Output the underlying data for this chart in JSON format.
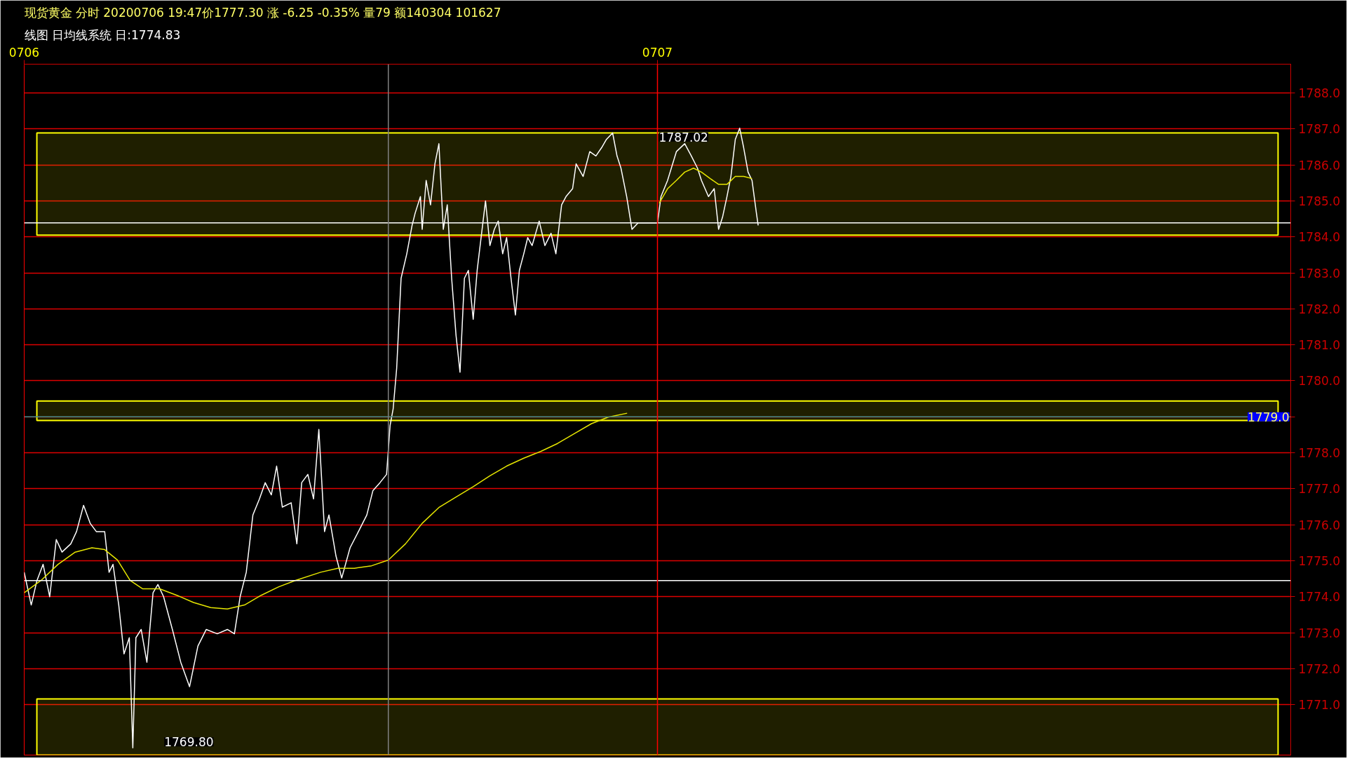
{
  "chart_data": {
    "type": "line",
    "title": "现货黄金 分时 20200706 19:47价1777.30 涨 -6.25 -0.35% 量79 额140304 101627",
    "subtitle": "线图 日均线系统 日:1774.83",
    "series": [
      {
        "color": "#ffffff",
        "x": [
          "2020-07-06T00:00",
          "2020-07-06T00:16",
          "2020-07-06T00:29",
          "2020-07-06T00:43",
          "2020-07-06T00:58",
          "2020-07-06T01:13",
          "2020-07-06T01:26",
          "2020-07-06T01:46",
          "2020-07-06T01:59",
          "2020-07-06T02:15",
          "2020-07-06T02:30",
          "2020-07-06T02:44",
          "2020-07-06T03:03",
          "2020-07-06T03:13",
          "2020-07-06T03:22",
          "2020-07-06T03:35",
          "2020-07-06T03:47",
          "2020-07-06T03:59",
          "2020-07-06T04:07",
          "2020-07-06T04:14",
          "2020-07-06T04:26",
          "2020-07-06T04:39",
          "2020-07-06T04:53",
          "2020-07-06T05:04",
          "2020-07-06T05:17",
          "2020-07-06T05:37",
          "2020-07-06T05:56",
          "2020-07-06T06:16",
          "2020-07-06T06:35",
          "2020-07-06T06:54",
          "2020-07-06T07:19",
          "2020-07-06T07:42",
          "2020-07-06T07:58",
          "2020-07-06T08:11",
          "2020-07-06T08:25",
          "2020-07-06T08:40",
          "2020-07-06T08:55",
          "2020-07-06T09:08",
          "2020-07-06T09:22",
          "2020-07-06T09:34",
          "2020-07-06T09:47",
          "2020-07-06T10:07",
          "2020-07-06T10:20",
          "2020-07-06T10:31",
          "2020-07-06T10:45",
          "2020-07-06T10:58",
          "2020-07-06T11:10",
          "2020-07-06T11:23",
          "2020-07-06T11:33",
          "2020-07-06T11:49",
          "2020-07-06T12:02",
          "2020-07-06T12:21",
          "2020-07-06T12:40",
          "2020-07-06T12:59",
          "2020-07-06T13:13",
          "2020-07-06T13:29",
          "2020-07-06T13:44",
          "2020-07-06T13:52",
          "2020-07-06T13:59",
          "2020-07-06T14:07",
          "2020-07-06T14:17",
          "2020-07-06T14:30",
          "2020-07-06T14:42",
          "2020-07-06T14:49",
          "2020-07-06T15:01",
          "2020-07-06T15:05",
          "2020-07-06T15:14",
          "2020-07-06T15:24",
          "2020-07-06T15:34",
          "2020-07-06T15:43",
          "2020-07-06T15:53",
          "2020-07-06T16:02",
          "2020-07-06T16:12",
          "2020-07-06T16:22",
          "2020-07-06T16:31",
          "2020-07-06T16:41",
          "2020-07-06T16:50",
          "2020-07-06T17:01",
          "2020-07-06T17:10",
          "2020-07-06T17:29",
          "2020-07-06T17:39",
          "2020-07-06T17:49",
          "2020-07-06T17:58",
          "2020-07-06T18:08",
          "2020-07-06T18:17",
          "2020-07-06T18:27",
          "2020-07-06T18:37",
          "2020-07-06T18:46",
          "2020-07-06T18:56",
          "2020-07-06T19:05",
          "2020-07-06T19:15",
          "2020-07-06T19:31",
          "2020-07-06T19:44",
          "2020-07-06T19:58",
          "2020-07-06T20:09",
          "2020-07-06T20:22",
          "2020-07-06T20:32",
          "2020-07-06T20:47",
          "2020-07-06T20:55",
          "2020-07-06T21:11",
          "2020-07-06T21:26",
          "2020-07-06T21:40",
          "2020-07-06T21:53",
          "2020-07-06T22:04",
          "2020-07-06T22:18",
          "2020-07-06T22:28",
          "2020-07-06T22:37",
          "2020-07-06T22:50",
          "2020-07-06T23:02",
          "2020-07-06T23:16",
          "2020-07-07T00:00",
          "2020-07-07T00:08",
          "2020-07-07T00:23",
          "2020-07-07T00:43",
          "2020-07-07T01:02",
          "2020-07-07T01:17",
          "2020-07-07T01:31",
          "2020-07-07T01:40",
          "2020-07-07T01:56",
          "2020-07-07T02:09",
          "2020-07-07T02:19",
          "2020-07-07T02:28",
          "2020-07-07T02:38",
          "2020-07-07T02:47",
          "2020-07-07T02:57",
          "2020-07-07T03:07",
          "2020-07-07T03:16",
          "2020-07-07T03:26",
          "2020-07-07T03:35",
          "2020-07-07T03:45",
          "2020-07-07T03:49"
        ],
        "values": [
          1774.68,
          1773.77,
          1774.45,
          1774.9,
          1774.0,
          1775.59,
          1775.24,
          1775.47,
          1775.81,
          1776.54,
          1776.04,
          1775.81,
          1775.81,
          1774.68,
          1774.9,
          1773.77,
          1772.41,
          1772.86,
          1769.8,
          1772.86,
          1773.09,
          1772.18,
          1774.11,
          1774.34,
          1774.0,
          1773.09,
          1772.18,
          1771.5,
          1772.63,
          1773.09,
          1772.97,
          1773.09,
          1772.97,
          1774.0,
          1774.68,
          1776.27,
          1776.72,
          1777.17,
          1776.83,
          1777.63,
          1776.49,
          1776.61,
          1775.47,
          1777.17,
          1777.4,
          1776.72,
          1778.65,
          1775.81,
          1776.27,
          1775.13,
          1774.52,
          1775.36,
          1775.81,
          1776.27,
          1776.95,
          1777.17,
          1777.4,
          1778.76,
          1779.22,
          1780.35,
          1782.85,
          1783.53,
          1784.32,
          1784.66,
          1785.12,
          1784.21,
          1785.57,
          1784.89,
          1786.03,
          1786.59,
          1784.21,
          1784.89,
          1782.85,
          1781.26,
          1780.24,
          1782.85,
          1783.07,
          1781.71,
          1783.07,
          1785.0,
          1783.76,
          1784.21,
          1784.44,
          1783.53,
          1783.98,
          1782.85,
          1781.83,
          1783.07,
          1783.53,
          1783.98,
          1783.76,
          1784.44,
          1783.76,
          1784.1,
          1783.53,
          1784.89,
          1785.12,
          1785.34,
          1786.03,
          1785.68,
          1786.37,
          1786.25,
          1786.48,
          1786.71,
          1786.89,
          1786.25,
          1785.91,
          1785.12,
          1784.21,
          1784.39,
          1784.39,
          1785.12,
          1785.57,
          1786.37,
          1786.59,
          1786.25,
          1785.91,
          1785.57,
          1785.12,
          1785.34,
          1784.21,
          1784.55,
          1785.12,
          1785.68,
          1786.71,
          1787.02,
          1786.48,
          1785.8,
          1785.57,
          1784.66,
          1784.32
        ]
      },
      {
        "color": "#e6e600",
        "x": [
          "2020-07-06T00:00",
          "2020-07-06T00:38",
          "2020-07-06T01:17",
          "2020-07-06T01:56",
          "2020-07-06T02:34",
          "2020-07-06T03:03",
          "2020-07-06T03:32",
          "2020-07-06T04:01",
          "2020-07-06T04:29",
          "2020-07-06T05:08",
          "2020-07-06T05:47",
          "2020-07-06T06:25",
          "2020-07-06T07:04",
          "2020-07-06T07:42",
          "2020-07-06T08:21",
          "2020-07-06T08:59",
          "2020-07-06T09:38",
          "2020-07-06T10:16",
          "2020-07-06T11:14",
          "2020-07-06T11:53",
          "2020-07-06T12:31",
          "2020-07-06T13:10",
          "2020-07-06T13:48",
          "2020-07-06T14:27",
          "2020-07-06T15:05",
          "2020-07-06T15:44",
          "2020-07-06T16:22",
          "2020-07-06T17:01",
          "2020-07-06T17:39",
          "2020-07-06T18:17",
          "2020-07-06T18:56",
          "2020-07-06T19:35",
          "2020-07-06T20:13",
          "2020-07-06T20:52",
          "2020-07-06T21:30",
          "2020-07-06T22:08",
          "2020-07-06T22:51",
          "2020-07-06T23:30",
          "2020-07-07T00:04",
          "2020-07-07T00:23",
          "2020-07-07T00:43",
          "2020-07-07T01:02",
          "2020-07-07T01:22",
          "2020-07-07T01:40",
          "2020-07-07T02:00",
          "2020-07-07T02:19",
          "2020-07-07T02:38",
          "2020-07-07T02:57",
          "2020-07-07T03:16",
          "2020-07-07T03:35"
        ],
        "values": [
          1774.11,
          1774.45,
          1774.9,
          1775.24,
          1775.36,
          1775.31,
          1775.02,
          1774.45,
          1774.22,
          1774.22,
          1774.04,
          1773.84,
          1773.7,
          1773.66,
          1773.77,
          1774.04,
          1774.27,
          1774.45,
          1774.68,
          1774.79,
          1774.79,
          1774.86,
          1775.02,
          1775.47,
          1776.04,
          1776.49,
          1776.77,
          1777.06,
          1777.36,
          1777.63,
          1777.85,
          1778.04,
          1778.26,
          1778.54,
          1778.81,
          1778.99,
          1779.1,
          null,
          1784.94,
          1785.34,
          1785.57,
          1785.8,
          1785.91,
          1785.8,
          1785.62,
          1785.46,
          1785.46,
          1785.68,
          1785.68,
          1785.62
        ]
      }
    ],
    "xlim": [
      "2020-07-06T00:00",
      "2020-07-08T00:00"
    ],
    "xticks": [
      {
        "value": "2020-07-06",
        "label": "0706"
      },
      {
        "value": "2020-07-07",
        "label": "0707"
      }
    ],
    "ylim": [
      1769.6,
      1788.8
    ],
    "yticks": [
      {
        "value": 1771,
        "label": "1771.0"
      },
      {
        "value": 1772,
        "label": "1772.0"
      },
      {
        "value": 1773,
        "label": "1773.0"
      },
      {
        "value": 1774,
        "label": "1774.0"
      },
      {
        "value": 1775,
        "label": "1775.0"
      },
      {
        "value": 1776,
        "label": "1776.0"
      },
      {
        "value": 1777,
        "label": "1777.0"
      },
      {
        "value": 1778,
        "label": "1778.0"
      },
      {
        "value": 1779,
        "label": null
      },
      {
        "value": 1780,
        "label": "1780.0"
      },
      {
        "value": 1781,
        "label": "1781.0"
      },
      {
        "value": 1782,
        "label": "1782.0"
      },
      {
        "value": 1783,
        "label": "1783.0"
      },
      {
        "value": 1784,
        "label": "1784.0"
      },
      {
        "value": 1785,
        "label": "1785.0"
      },
      {
        "value": 1786,
        "label": "1786.0"
      },
      {
        "value": 1787,
        "label": "1787.0"
      },
      {
        "value": 1788,
        "label": "1788.0"
      }
    ],
    "ref_lines": [
      {
        "axis": "y",
        "value": 1779.0,
        "label": "1779.0",
        "color": "#3c8c8c"
      },
      {
        "axis": "y",
        "value": 1784.39,
        "color": "#ffffff"
      },
      {
        "axis": "y",
        "value": 1774.45,
        "color": "#ffffff"
      },
      {
        "axis": "x",
        "value": "2020-07-07",
        "color": "#ff0000"
      },
      {
        "axis": "x",
        "value": "2020-07-06T13:48",
        "color": "#808080"
      }
    ],
    "bands": [
      {
        "axis": "y",
        "from": 1784.05,
        "to": 1786.89,
        "color": "#ffff00"
      },
      {
        "axis": "y",
        "from": 1778.9,
        "to": 1779.44,
        "color": "#ffff00"
      },
      {
        "axis": "y",
        "from": 1769.6,
        "to": 1771.16,
        "color": "#ffff00"
      }
    ],
    "annotations": [
      {
        "text": "1787.02",
        "x": "2020-07-07T03:07",
        "y": 1787.02
      },
      {
        "text": "1769.80",
        "x": "2020-07-06T04:07",
        "y": 1769.8
      }
    ],
    "grid": "y",
    "marker": "none",
    "line_style": "solid"
  }
}
